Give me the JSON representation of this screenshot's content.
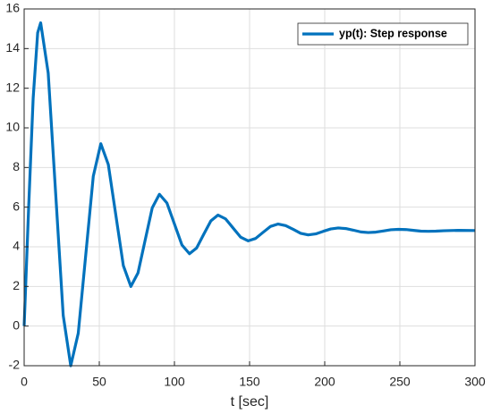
{
  "chart_data": {
    "type": "line",
    "x_label": "t [sec]",
    "x": [
      0,
      3,
      6,
      9,
      11,
      16,
      21,
      26,
      31,
      36,
      41,
      46,
      51,
      56,
      61,
      66,
      71,
      75.75,
      80.5,
      85.25,
      90,
      95,
      100,
      105,
      110,
      114.75,
      119.5,
      124.25,
      129,
      134,
      139,
      144,
      149,
      154,
      159,
      164,
      169,
      174,
      179,
      184,
      189,
      194,
      199,
      204,
      209,
      214,
      219,
      224,
      229,
      234,
      239,
      244,
      249,
      254,
      259,
      264,
      269,
      274,
      279,
      284,
      289,
      300
    ],
    "series": [
      {
        "name": "yp(t): Step response",
        "color": "#0072bd",
        "values": [
          0,
          6,
          11.5,
          14.8,
          15.3,
          12.77,
          6.65,
          0.53,
          -2.0,
          -0.36,
          3.6,
          7.56,
          9.2,
          8.15,
          5.6,
          3.05,
          2.0,
          2.68,
          4.33,
          5.97,
          6.65,
          6.21,
          5.15,
          4.09,
          3.65,
          3.94,
          4.63,
          5.31,
          5.6,
          5.41,
          4.95,
          4.49,
          4.3,
          4.42,
          4.73,
          5.03,
          5.15,
          5.07,
          4.88,
          4.68,
          4.6,
          4.65,
          4.78,
          4.9,
          4.95,
          4.92,
          4.84,
          4.75,
          4.72,
          4.74,
          4.8,
          4.86,
          4.88,
          4.87,
          4.83,
          4.79,
          4.78,
          4.79,
          4.81,
          4.82,
          4.83,
          4.82
        ]
      }
    ],
    "xlim": [
      0,
      300
    ],
    "xticks": [
      0,
      50,
      100,
      150,
      200,
      250,
      300
    ],
    "ylim": [
      -2,
      16
    ],
    "yticks": [
      -2,
      0,
      2,
      4,
      6,
      8,
      10,
      12,
      14,
      16
    ],
    "grid": true,
    "legend": "upper right"
  }
}
